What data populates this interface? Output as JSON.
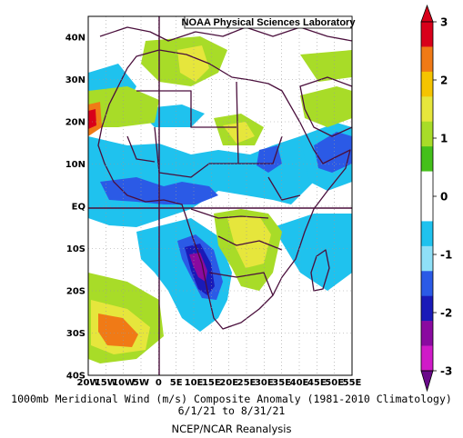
{
  "header": {
    "lab_label": "NOAA Physical Sciences Laboratory"
  },
  "map": {
    "lat_labels": [
      "40N",
      "30N",
      "20N",
      "10N",
      "EQ",
      "10S",
      "20S",
      "30S",
      "40S"
    ],
    "lon_labels": [
      "20W",
      "15W",
      "10W",
      "5W",
      "0",
      "5E",
      "10E",
      "15E",
      "20E",
      "25E",
      "30E",
      "35E",
      "40E",
      "45E",
      "50E",
      "55E"
    ],
    "land_color": "#ffffff",
    "border_color": "#4a0f3c"
  },
  "colorbar": {
    "labels": [
      "3",
      "2",
      "1",
      "0",
      "-1",
      "-2",
      "-3"
    ],
    "colors": [
      "#d8001a",
      "#f07a16",
      "#f5c400",
      "#e6e63c",
      "#a8dc28",
      "#44c01a",
      "#ffffff",
      "#ffffff",
      "#1fc2ee",
      "#8fe0f7",
      "#2b5ae6",
      "#1a1ab8",
      "#8a0aa0",
      "#d01ac8"
    ]
  },
  "caption": {
    "title": "1000mb Meridional Wind (m/s) Composite Anomaly (1981-2010 Climatology)",
    "dates": "6/1/21  to 8/31/21",
    "source": "NCEP/NCAR Reanalysis"
  }
}
